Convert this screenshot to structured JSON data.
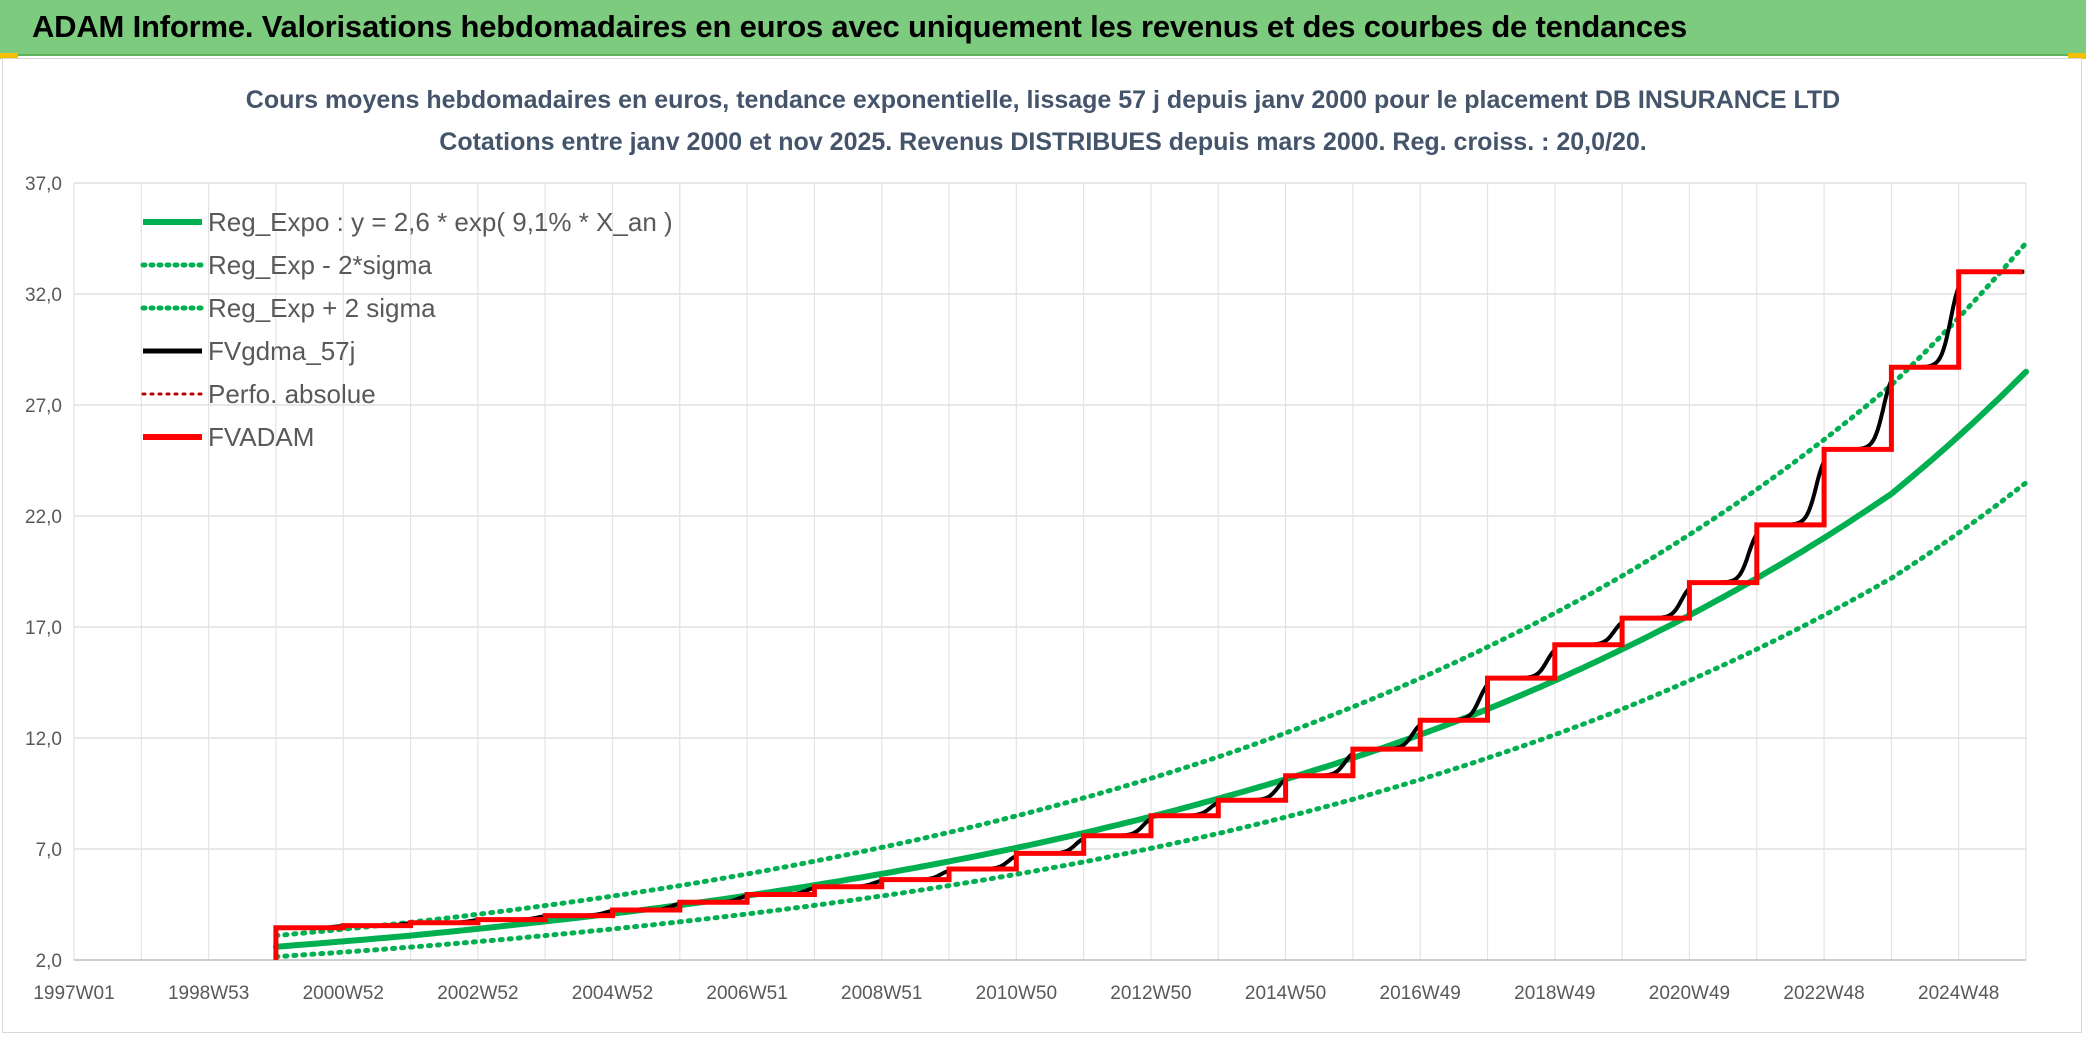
{
  "banner": {
    "title": "ADAM Informe. Valorisations hebdomadaires en euros avec uniquement les revenus et des courbes de tendances",
    "background": "#7ccb7e"
  },
  "chart_data": {
    "type": "line",
    "title": "Cours moyens hebdomadaires en euros, tendance exponentielle, lissage 57 j depuis janv 2000 pour le placement DB INSURANCE LTD",
    "subtitle": "Cotations entre janv 2000 et nov 2025. Revenus DISTRIBUES depuis mars 2000. Reg. croiss. : 20,0/20.",
    "xlabel": "",
    "ylabel": "",
    "x_tick_labels": [
      "1997W01",
      "1998W53",
      "2000W52",
      "2002W52",
      "2004W52",
      "2006W51",
      "2008W51",
      "2010W50",
      "2012W50",
      "2014W50",
      "2016W49",
      "2018W49",
      "2020W49",
      "2022W48",
      "2024W48"
    ],
    "x_tick_years": [
      1997.0,
      1999.0,
      2001.0,
      2003.0,
      2005.0,
      2007.0,
      2009.0,
      2011.0,
      2013.0,
      2015.0,
      2017.0,
      2019.0,
      2021.0,
      2023.0,
      2025.0
    ],
    "xlim": [
      1997.0,
      2026.0
    ],
    "y_tick_labels": [
      "2,0",
      "7,0",
      "12,0",
      "17,0",
      "22,0",
      "27,0",
      "32,0",
      "37,0"
    ],
    "ylim": [
      2.0,
      37.0
    ],
    "grid": true,
    "legend_position": "top-left",
    "series": [
      {
        "name": "Reg_Expo : y = 2,6 * exp( 9,1% *  X_an )",
        "color": "#00b050",
        "style": "solid",
        "x": [
          2000.0,
          2002.0,
          2004.0,
          2006.0,
          2008.0,
          2010.0,
          2012.0,
          2014.0,
          2016.0,
          2018.0,
          2020.0,
          2022.0,
          2024.0,
          2026.0
        ],
        "y": [
          2.6,
          3.1,
          3.74,
          4.47,
          5.37,
          6.44,
          7.72,
          9.27,
          11.1,
          13.3,
          16.0,
          19.2,
          23.0,
          28.5
        ]
      },
      {
        "name": "Reg_Exp - 2*sigma",
        "color": "#00b050",
        "style": "dotted",
        "x": [
          2000.0,
          2002.0,
          2004.0,
          2006.0,
          2008.0,
          2010.0,
          2012.0,
          2014.0,
          2016.0,
          2018.0,
          2020.0,
          2022.0,
          2024.0,
          2026.0
        ],
        "y": [
          2.15,
          2.58,
          3.1,
          3.72,
          4.46,
          5.35,
          6.42,
          7.7,
          9.24,
          11.1,
          13.3,
          16.0,
          19.2,
          23.5
        ]
      },
      {
        "name": "Reg_Exp + 2 sigma",
        "color": "#00b050",
        "style": "dotted",
        "x": [
          2000.0,
          2002.0,
          2004.0,
          2006.0,
          2008.0,
          2010.0,
          2012.0,
          2014.0,
          2016.0,
          2018.0,
          2020.0,
          2022.0,
          2024.0,
          2026.0
        ],
        "y": [
          3.1,
          3.7,
          4.45,
          5.35,
          6.45,
          7.75,
          9.3,
          11.15,
          13.4,
          16.1,
          19.3,
          23.2,
          27.9,
          34.3
        ]
      },
      {
        "name": "FVgdma_57j",
        "color": "#000000",
        "style": "smooth-steps",
        "x": [
          2000.0,
          2001.0,
          2002.0,
          2003.0,
          2004.0,
          2005.0,
          2006.0,
          2007.0,
          2008.0,
          2009.0,
          2010.0,
          2011.0,
          2012.0,
          2013.0,
          2014.0,
          2015.0,
          2016.0,
          2017.0,
          2018.0,
          2019.0,
          2020.0,
          2021.0,
          2022.0,
          2023.0,
          2024.0,
          2025.0
        ],
        "y": [
          3.45,
          3.55,
          3.68,
          3.82,
          4.0,
          4.25,
          4.6,
          4.95,
          5.3,
          5.62,
          6.1,
          6.8,
          7.6,
          8.5,
          9.2,
          10.3,
          11.5,
          12.8,
          14.7,
          16.2,
          17.4,
          19.0,
          21.6,
          25.0,
          28.7,
          33.0
        ]
      },
      {
        "name": "Perfo. absolue",
        "color": "#c00000",
        "style": "dotted",
        "x": [],
        "y": []
      },
      {
        "name": "FVADAM",
        "color": "#ff0000",
        "style": "step",
        "x": [
          2000.0,
          2001.0,
          2002.0,
          2003.0,
          2004.0,
          2005.0,
          2006.0,
          2007.0,
          2008.0,
          2009.0,
          2010.0,
          2011.0,
          2012.0,
          2013.0,
          2014.0,
          2015.0,
          2016.0,
          2017.0,
          2018.0,
          2019.0,
          2020.0,
          2021.0,
          2022.0,
          2023.0,
          2024.0,
          2025.0
        ],
        "y": [
          3.45,
          3.55,
          3.68,
          3.82,
          4.0,
          4.25,
          4.6,
          4.95,
          5.3,
          5.62,
          6.1,
          6.8,
          7.6,
          8.5,
          9.2,
          10.3,
          11.5,
          12.8,
          14.7,
          16.2,
          17.4,
          19.0,
          21.6,
          25.0,
          28.7,
          33.0
        ],
        "start_y": 2.0
      }
    ]
  }
}
